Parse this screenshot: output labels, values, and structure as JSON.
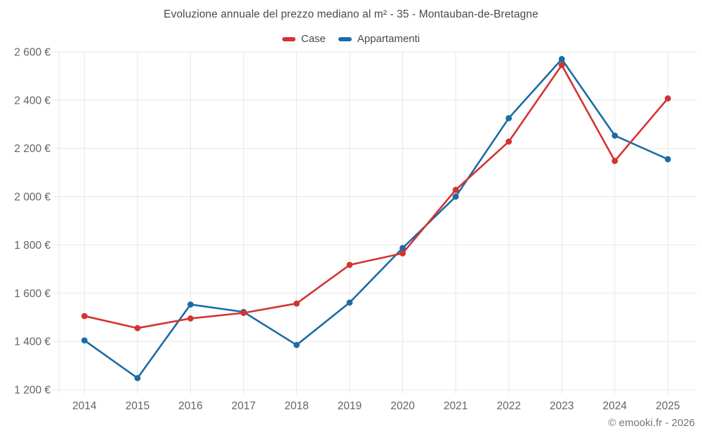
{
  "attribution": "© emooki.fr - 2026",
  "colors": {
    "case_series": "#d43330",
    "appartamenti_series": "#1a6ca6",
    "grid": "#e7e7e7",
    "title_text": "#4a4a4a",
    "tick_text": "#636363",
    "attribution_text": "#757575",
    "background": "#ffffff"
  },
  "chart_data": {
    "type": "line",
    "title": "Evoluzione annuale del prezzo mediano al m² - 35 - Montauban-de-Bretagne",
    "x": [
      "2014",
      "2015",
      "2016",
      "2017",
      "2018",
      "2019",
      "2020",
      "2021",
      "2022",
      "2023",
      "2024",
      "2025"
    ],
    "series": [
      {
        "name": "Case",
        "color": "#d43330",
        "values": [
          1505,
          1455,
          1495,
          1518,
          1557,
          1717,
          1765,
          2028,
          2228,
          2545,
          2148,
          2407
        ]
      },
      {
        "name": "Appartamenti",
        "color": "#1a6ca6",
        "values": [
          1404,
          1248,
          1553,
          1522,
          1385,
          1561,
          1787,
          2000,
          2325,
          2570,
          2253,
          2155
        ]
      }
    ],
    "ylim": [
      1200,
      2600
    ],
    "ytick_step": 200,
    "ytick_suffix": " €",
    "xlabel": "",
    "ylabel": "",
    "grid": true,
    "legend_position": "top",
    "marker": "circle"
  }
}
